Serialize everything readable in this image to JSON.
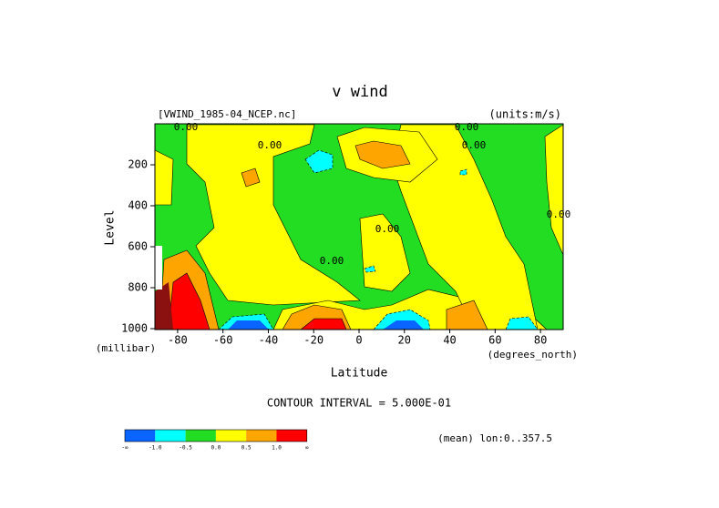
{
  "chart_data": {
    "type": "contour",
    "title": "v wind",
    "file_label": "[VWIND_1985-04_NCEP.nc]",
    "units_label": "(units:m/s)",
    "x_label": "Latitude",
    "x_unit_label": "(degrees_north)",
    "y_label": "Level",
    "y_unit_label": "(millibar)",
    "xlim": [
      -90,
      90
    ],
    "xticks": [
      -80,
      -60,
      -40,
      -20,
      0,
      20,
      40,
      60,
      80
    ],
    "ylim": [
      1000,
      0
    ],
    "yticks": [
      200,
      400,
      600,
      800,
      1000
    ],
    "contour_interval_label": "CONTOUR INTERVAL = 5.000E-01",
    "contour_labels": [
      "0.00",
      "0.00",
      "0.00",
      "0.00",
      "0.00",
      "0.00",
      "0.00"
    ],
    "colorbar": {
      "colors": [
        "#0a64ff",
        "#00ffff",
        "#22dd22",
        "#ffff00",
        "#ffa500",
        "#ff0000"
      ],
      "labels": [
        "-∞",
        "-1.0",
        "-0.5",
        "0.0",
        "0.5",
        "1.0",
        "∞"
      ]
    },
    "footer": "(mean) lon:0..357.5"
  }
}
